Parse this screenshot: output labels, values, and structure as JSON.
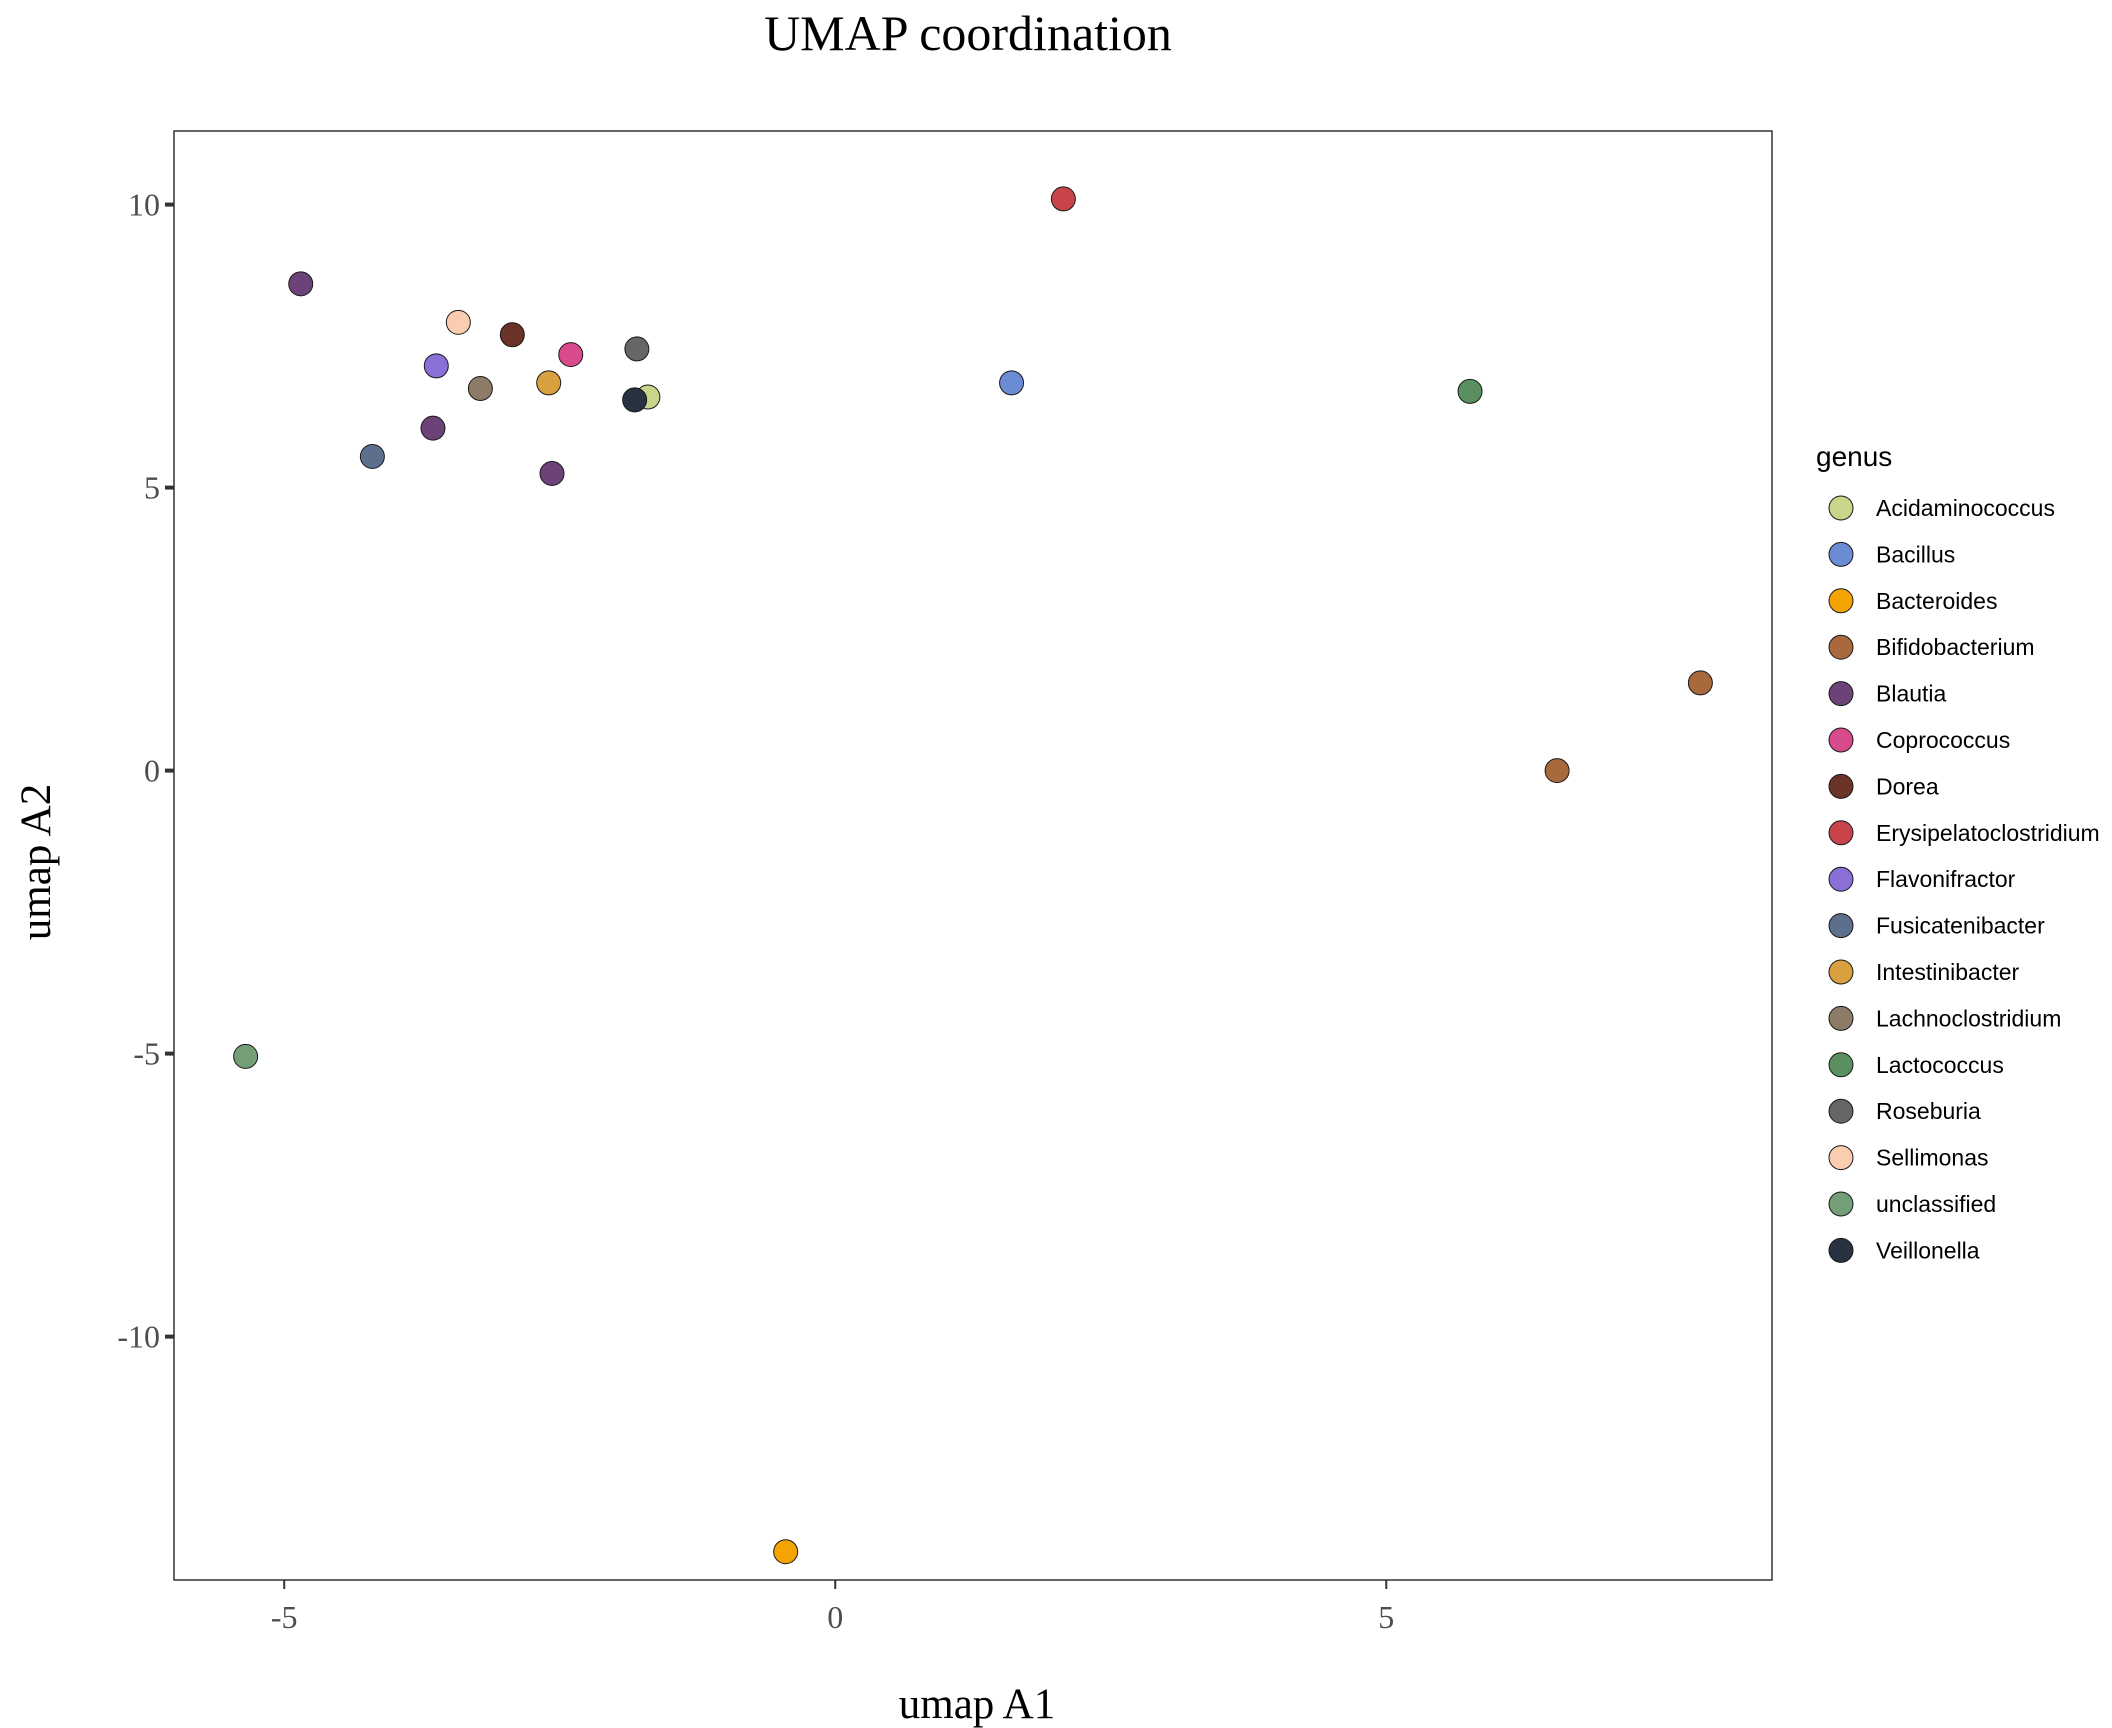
{
  "chart_data": {
    "type": "scatter",
    "title": "UMAP coordination",
    "xlabel": "umap A1",
    "ylabel": "umap A2",
    "xlim": [
      -6.0,
      8.5
    ],
    "ylim": [
      -14.3,
      11.3
    ],
    "xticks": [
      -5,
      0,
      5
    ],
    "xtick_labels": [
      "-5",
      "0",
      "5"
    ],
    "yticks": [
      10,
      5,
      0,
      -5,
      -10
    ],
    "ytick_labels": [
      "10",
      "5",
      "0",
      "-5",
      "-10"
    ],
    "grid": false,
    "legend": {
      "title": "genus",
      "placement": "right"
    },
    "series": [
      {
        "name": "Acidaminococcus",
        "color": "#c8d68b",
        "points": [
          [
            -1.7,
            6.6
          ]
        ]
      },
      {
        "name": "Bacillus",
        "color": "#6b8bd4",
        "points": [
          [
            1.6,
            6.85
          ]
        ]
      },
      {
        "name": "Bacteroides",
        "color": "#f5a300",
        "points": [
          [
            -0.45,
            -13.8
          ]
        ]
      },
      {
        "name": "Bifidobacterium",
        "color": "#a8693c",
        "points": [
          [
            6.55,
            0.0
          ],
          [
            7.85,
            1.55
          ]
        ]
      },
      {
        "name": "Blautia",
        "color": "#6d4278",
        "points": [
          [
            -4.85,
            8.6
          ],
          [
            -3.65,
            6.05
          ],
          [
            -2.57,
            5.25
          ]
        ]
      },
      {
        "name": "Coprococcus",
        "color": "#d94a8c",
        "points": [
          [
            -2.4,
            7.35
          ]
        ]
      },
      {
        "name": "Dorea",
        "color": "#6b3328",
        "points": [
          [
            -2.93,
            7.7
          ]
        ]
      },
      {
        "name": "Erysipelatoclostridium",
        "color": "#c9434b",
        "points": [
          [
            2.07,
            10.1
          ]
        ]
      },
      {
        "name": "Flavonifractor",
        "color": "#8b6fd9",
        "points": [
          [
            -3.62,
            7.15
          ]
        ]
      },
      {
        "name": "Fusicatenibacter",
        "color": "#5c6f8c",
        "points": [
          [
            -4.2,
            5.55
          ]
        ]
      },
      {
        "name": "Intestinibacter",
        "color": "#d9a13d",
        "points": [
          [
            -2.6,
            6.85
          ]
        ]
      },
      {
        "name": "Lachnoclostridium",
        "color": "#8c7c67",
        "points": [
          [
            -3.22,
            6.75
          ]
        ]
      },
      {
        "name": "Lactococcus",
        "color": "#5a9060",
        "points": [
          [
            5.76,
            6.7
          ]
        ]
      },
      {
        "name": "Roseburia",
        "color": "#666666",
        "points": [
          [
            -1.8,
            7.45
          ]
        ]
      },
      {
        "name": "Sellimonas",
        "color": "#fbcdb0",
        "points": [
          [
            -3.42,
            7.92
          ]
        ]
      },
      {
        "name": "unclassified",
        "color": "#739e78",
        "points": [
          [
            -5.35,
            -5.05
          ]
        ]
      },
      {
        "name": "Veillonella",
        "color": "#283241",
        "points": [
          [
            -1.82,
            6.55
          ]
        ]
      }
    ]
  }
}
